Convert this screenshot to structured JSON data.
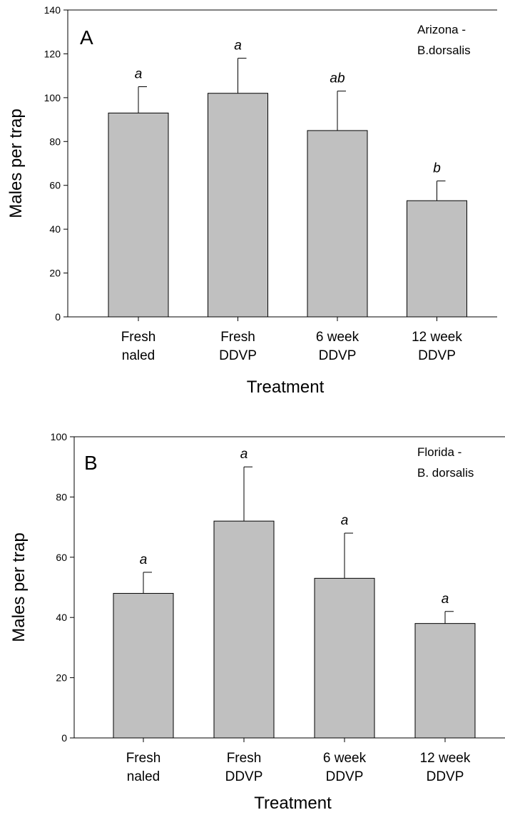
{
  "chart_data": [
    {
      "type": "bar",
      "panel_label": "A",
      "annotation": [
        "Arizona -",
        "B.dorsalis"
      ],
      "categories": [
        [
          "Fresh",
          "naled"
        ],
        [
          "Fresh",
          "DDVP"
        ],
        [
          "6 week",
          "DDVP"
        ],
        [
          "12 week",
          "DDVP"
        ]
      ],
      "values": [
        93,
        102,
        85,
        53
      ],
      "error_upper": [
        105,
        118,
        103,
        62
      ],
      "significance": [
        "a",
        "a",
        "ab",
        "b"
      ],
      "xlabel": "Treatment",
      "ylabel": "Males per trap",
      "ylim": [
        0,
        140
      ],
      "yticks": [
        0,
        20,
        40,
        60,
        80,
        100,
        120,
        140
      ]
    },
    {
      "type": "bar",
      "panel_label": "B",
      "annotation": [
        "Florida -",
        "B. dorsalis"
      ],
      "categories": [
        [
          "Fresh",
          "naled"
        ],
        [
          "Fresh",
          "DDVP"
        ],
        [
          "6 week",
          "DDVP"
        ],
        [
          "12 week",
          "DDVP"
        ]
      ],
      "values": [
        48,
        72,
        53,
        38
      ],
      "error_upper": [
        55,
        90,
        68,
        42
      ],
      "significance": [
        "a",
        "a",
        "a",
        "a"
      ],
      "xlabel": "Treatment",
      "ylabel": "Males per trap",
      "ylim": [
        0,
        100
      ],
      "yticks": [
        0,
        20,
        40,
        60,
        80,
        100
      ]
    }
  ]
}
